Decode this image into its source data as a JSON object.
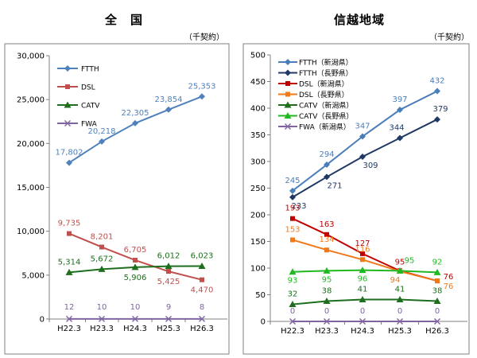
{
  "chart_data": [
    {
      "type": "line",
      "title": "全　国",
      "unit": "（千契約）",
      "categories": [
        "H22.3",
        "H23.3",
        "H24.3",
        "H25.3",
        "H26.3"
      ],
      "ylim": [
        0,
        30000
      ],
      "yticks": [
        "0",
        "5,000",
        "10,000",
        "15,000",
        "20,000",
        "25,000",
        "30,000"
      ],
      "grid": false,
      "legend_position": "top-left",
      "series": [
        {
          "name": "FTTH",
          "values": [
            17802,
            20218,
            22305,
            23854,
            25353
          ],
          "labels": [
            "17,802",
            "20,218",
            "22,305",
            "23,854",
            "25,353"
          ],
          "color": "#4f81bd",
          "marker": "diamond"
        },
        {
          "name": "DSL",
          "values": [
            9735,
            8201,
            6705,
            5425,
            4470
          ],
          "labels": [
            "9,735",
            "8,201",
            "6,705",
            "5,425",
            "4,470"
          ],
          "color": "#c0504d",
          "marker": "square"
        },
        {
          "name": "CATV",
          "values": [
            5314,
            5672,
            5906,
            6012,
            6023
          ],
          "labels": [
            "5,314",
            "5,672",
            "5,906",
            "6,012",
            "6,023"
          ],
          "color": "#1e6e1e",
          "marker": "triangle"
        },
        {
          "name": "FWA",
          "values": [
            12,
            10,
            10,
            9,
            8
          ],
          "labels": [
            "12",
            "10",
            "10",
            "9",
            "8"
          ],
          "color": "#8064a2",
          "marker": "x"
        }
      ]
    },
    {
      "type": "line",
      "title": "信越地域",
      "unit": "（千契約）",
      "categories": [
        "H22.3",
        "H23.3",
        "H24.3",
        "H25.3",
        "H26.3"
      ],
      "ylim": [
        0,
        500
      ],
      "yticks": [
        "0",
        "50",
        "100",
        "150",
        "200",
        "250",
        "300",
        "350",
        "400",
        "450",
        "500"
      ],
      "grid": false,
      "legend_position": "top-left",
      "series": [
        {
          "name": "FTTH（新潟県）",
          "values": [
            245,
            294,
            347,
            397,
            432
          ],
          "labels": [
            "245",
            "294",
            "347",
            "397",
            "432"
          ],
          "color": "#4a7ebb",
          "marker": "diamond"
        },
        {
          "name": "FTTH（長野県）",
          "values": [
            233,
            271,
            309,
            344,
            379
          ],
          "labels": [
            "233",
            "271",
            "309",
            "344",
            "379"
          ],
          "color": "#1f3864",
          "marker": "diamond"
        },
        {
          "name": "DSL（新潟県）",
          "values": [
            193,
            163,
            127,
            95,
            76
          ],
          "labels": [
            "193",
            "163",
            "127",
            "95",
            "76"
          ],
          "color": "#c00000",
          "marker": "square"
        },
        {
          "name": "DSL（長野県）",
          "values": [
            153,
            134,
            116,
            94,
            76
          ],
          "labels": [
            "153",
            "134",
            "116",
            "94",
            "76"
          ],
          "color": "#f07a1a",
          "marker": "square"
        },
        {
          "name": "CATV（新潟県）",
          "values": [
            32,
            38,
            41,
            41,
            38
          ],
          "labels": [
            "32",
            "38",
            "41",
            "41",
            "38"
          ],
          "color": "#1e6e1e",
          "marker": "triangle"
        },
        {
          "name": "CATV（長野県）",
          "values": [
            93,
            95,
            96,
            95,
            92
          ],
          "labels": [
            "93",
            "95",
            "96",
            "95",
            "92"
          ],
          "color": "#22b822",
          "marker": "triangle"
        },
        {
          "name": "FWA（新潟県）",
          "values": [
            0,
            0,
            0,
            0,
            0
          ],
          "labels": [
            "0",
            "0",
            "0",
            "0",
            "0"
          ],
          "color": "#8064a2",
          "marker": "x"
        }
      ]
    }
  ]
}
